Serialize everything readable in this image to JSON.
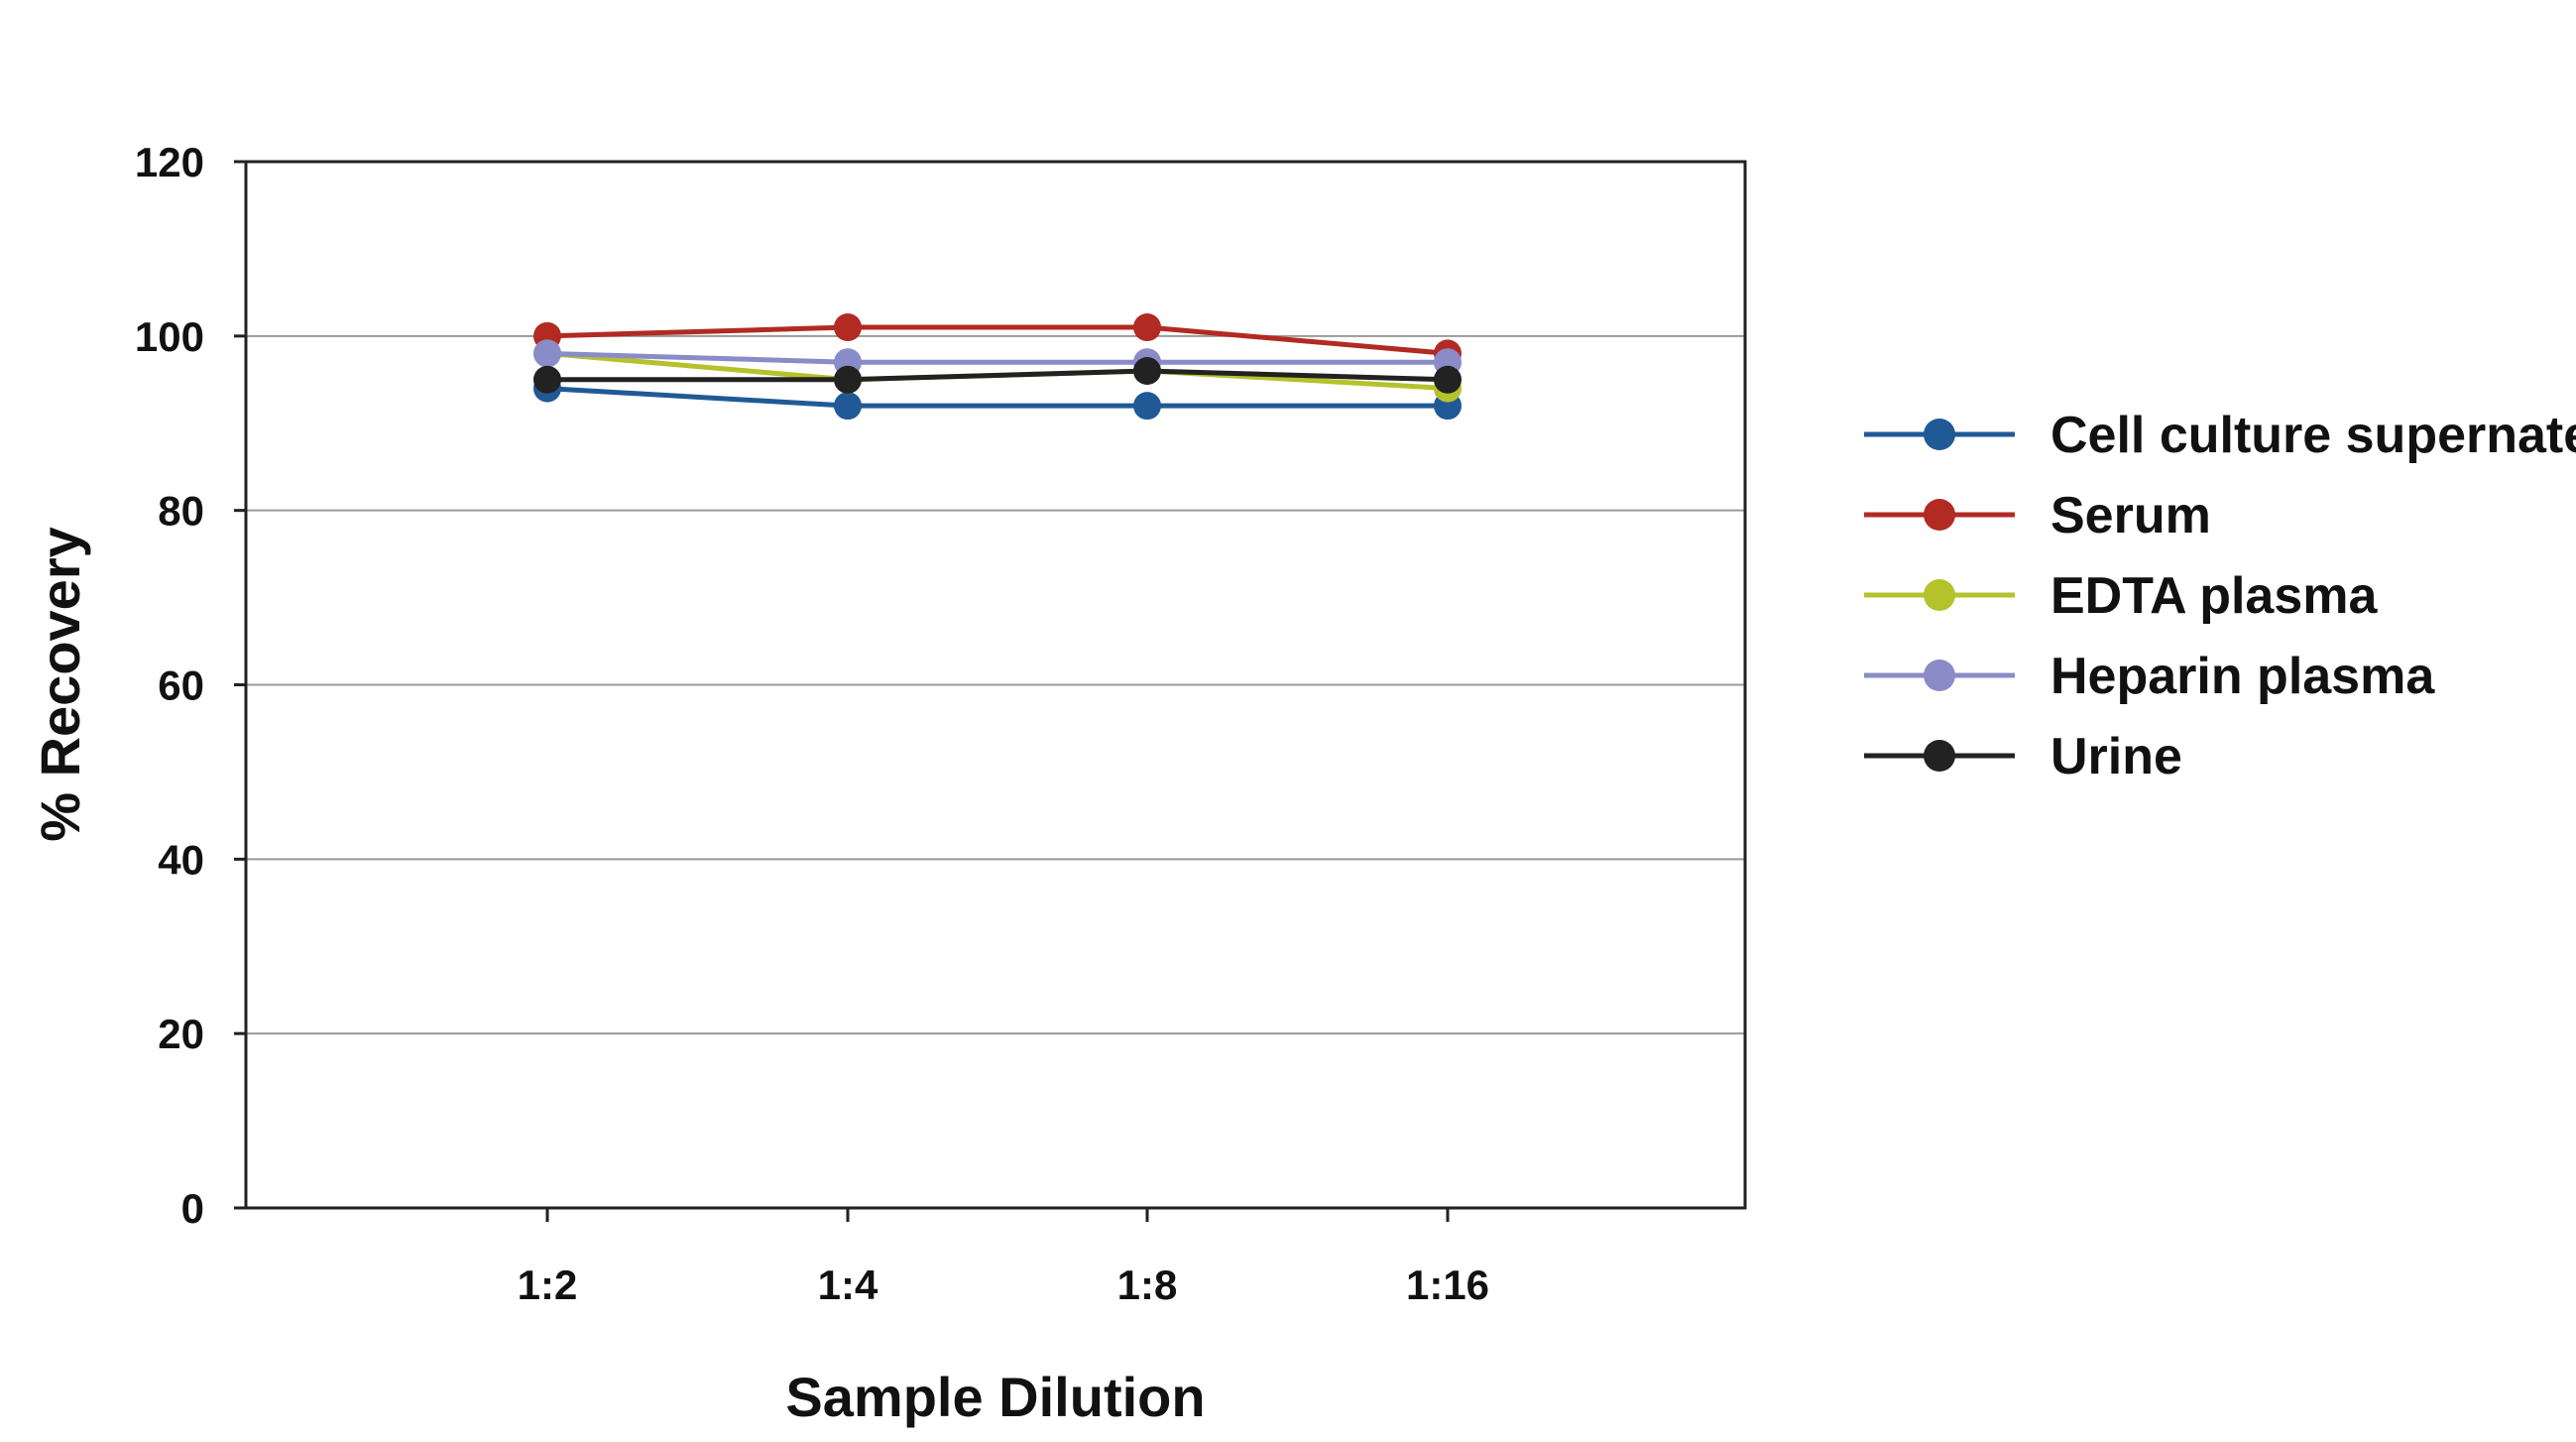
{
  "chart_data": {
    "type": "line",
    "title": "",
    "xlabel": "Sample Dilution",
    "ylabel": "% Recovery",
    "categories": [
      "1:2",
      "1:4",
      "1:8",
      "1:16"
    ],
    "ylim": [
      0,
      120
    ],
    "yticks": [
      0,
      20,
      40,
      60,
      80,
      100,
      120
    ],
    "grid": true,
    "legend_position": "right",
    "series": [
      {
        "name": "Cell culture supernates",
        "color": "#1f5a96",
        "values": [
          94,
          92,
          92,
          92
        ]
      },
      {
        "name": "Serum",
        "color": "#b22a22",
        "values": [
          100,
          101,
          101,
          98
        ]
      },
      {
        "name": "EDTA plasma",
        "color": "#b5c22c",
        "values": [
          98,
          95,
          96,
          94
        ]
      },
      {
        "name": "Heparin plasma",
        "color": "#8a8cc8",
        "values": [
          98,
          97,
          97,
          97
        ]
      },
      {
        "name": "Urine",
        "color": "#222222",
        "values": [
          95,
          95,
          96,
          95
        ]
      }
    ]
  }
}
